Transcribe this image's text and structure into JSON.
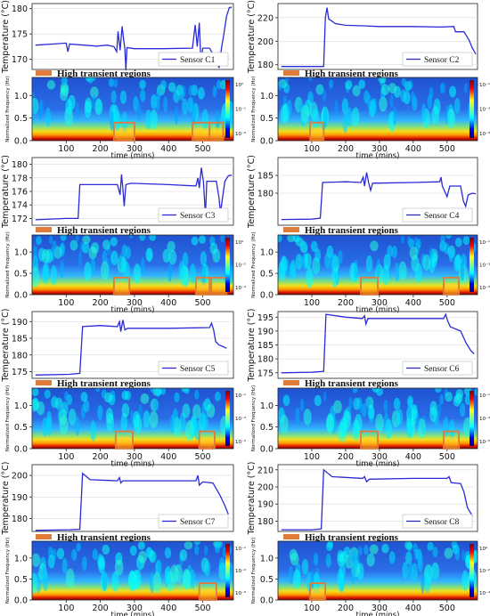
{
  "chart_data": [
    {
      "type": "line",
      "sensor": "C1",
      "ylabel": "Temperature (°C)",
      "legend": "Sensor C1",
      "yticks": [
        170,
        175,
        180
      ],
      "ylim": [
        168,
        181
      ],
      "xlim": [
        0,
        590
      ],
      "pts": [
        [
          10,
          172.8
        ],
        [
          60,
          173
        ],
        [
          100,
          173.2
        ],
        [
          105,
          171.5
        ],
        [
          110,
          173
        ],
        [
          190,
          172.6
        ],
        [
          220,
          172.8
        ],
        [
          240,
          172.5
        ],
        [
          248,
          171.5
        ],
        [
          252,
          175.5
        ],
        [
          258,
          171.8
        ],
        [
          264,
          176.5
        ],
        [
          268,
          174
        ],
        [
          272,
          172
        ],
        [
          275,
          167.8
        ],
        [
          278,
          172.3
        ],
        [
          300,
          172.1
        ],
        [
          380,
          172.1
        ],
        [
          470,
          172.2
        ],
        [
          478,
          176.8
        ],
        [
          484,
          172.5
        ],
        [
          490,
          177.2
        ],
        [
          495,
          169
        ],
        [
          500,
          172.2
        ],
        [
          520,
          172.2
        ],
        [
          540,
          169.8
        ],
        [
          548,
          168.3
        ],
        [
          555,
          172.2
        ],
        [
          562,
          175
        ],
        [
          570,
          178.5
        ],
        [
          578,
          180.2
        ],
        [
          585,
          180.3
        ]
      ]
    },
    {
      "type": "line",
      "sensor": "C2",
      "ylabel": "Temperature (°C)",
      "legend": "Sensor C2",
      "yticks": [
        180,
        200,
        220
      ],
      "ylim": [
        176,
        232
      ],
      "xlim": [
        0,
        590
      ],
      "pts": [
        [
          10,
          178.5
        ],
        [
          100,
          178.5
        ],
        [
          135,
          178.5
        ],
        [
          140,
          220
        ],
        [
          145,
          228.5
        ],
        [
          150,
          219
        ],
        [
          170,
          215
        ],
        [
          200,
          213.5
        ],
        [
          260,
          213
        ],
        [
          300,
          212.5
        ],
        [
          400,
          212.5
        ],
        [
          480,
          212
        ],
        [
          520,
          212.5
        ],
        [
          525,
          208
        ],
        [
          550,
          208
        ],
        [
          565,
          201
        ],
        [
          575,
          194
        ],
        [
          585,
          189
        ]
      ]
    },
    {
      "type": "line",
      "sensor": "C3",
      "ylabel": "Temperature (°C)",
      "legend": "Sensor C3",
      "yticks": [
        172,
        174,
        176,
        178,
        180
      ],
      "ylim": [
        171,
        181
      ],
      "xlim": [
        0,
        590
      ],
      "pts": [
        [
          10,
          171.8
        ],
        [
          100,
          172
        ],
        [
          135,
          172
        ],
        [
          140,
          177
        ],
        [
          180,
          177
        ],
        [
          250,
          177
        ],
        [
          258,
          175.5
        ],
        [
          262,
          178.5
        ],
        [
          266,
          176.5
        ],
        [
          270,
          173.8
        ],
        [
          275,
          177
        ],
        [
          290,
          177.2
        ],
        [
          400,
          177
        ],
        [
          480,
          176.8
        ],
        [
          486,
          178
        ],
        [
          490,
          176.5
        ],
        [
          496,
          179.5
        ],
        [
          502,
          177.5
        ],
        [
          508,
          172.5
        ],
        [
          512,
          177.5
        ],
        [
          540,
          177.5
        ],
        [
          548,
          175
        ],
        [
          552,
          172.8
        ],
        [
          558,
          175
        ],
        [
          565,
          177.5
        ],
        [
          575,
          178.3
        ],
        [
          585,
          178.4
        ]
      ]
    },
    {
      "type": "line",
      "sensor": "C4",
      "ylabel": "Temperature (°C)",
      "legend": "Sensor C4",
      "yticks": [
        180,
        185
      ],
      "ylim": [
        171,
        190
      ],
      "xlim": [
        0,
        590
      ],
      "pts": [
        [
          10,
          172.6
        ],
        [
          100,
          172.7
        ],
        [
          125,
          173
        ],
        [
          132,
          183
        ],
        [
          200,
          183.2
        ],
        [
          245,
          183
        ],
        [
          252,
          184.5
        ],
        [
          256,
          182
        ],
        [
          262,
          185.8
        ],
        [
          268,
          183
        ],
        [
          274,
          180.8
        ],
        [
          280,
          182.8
        ],
        [
          400,
          183
        ],
        [
          478,
          183.2
        ],
        [
          482,
          184.5
        ],
        [
          486,
          182
        ],
        [
          500,
          179
        ],
        [
          508,
          182
        ],
        [
          540,
          182
        ],
        [
          548,
          177.8
        ],
        [
          555,
          176.3
        ],
        [
          562,
          179.5
        ],
        [
          575,
          180
        ],
        [
          585,
          179.8
        ]
      ]
    },
    {
      "type": "line",
      "sensor": "C5",
      "ylabel": "Temperature (°C)",
      "legend": "Sensor C5",
      "yticks": [
        175,
        180,
        185,
        190
      ],
      "ylim": [
        173,
        193
      ],
      "xlim": [
        0,
        590
      ],
      "pts": [
        [
          10,
          174
        ],
        [
          110,
          174.2
        ],
        [
          140,
          174.5
        ],
        [
          148,
          188.5
        ],
        [
          200,
          188.8
        ],
        [
          250,
          188.5
        ],
        [
          256,
          190
        ],
        [
          260,
          187
        ],
        [
          266,
          190.5
        ],
        [
          272,
          187.5
        ],
        [
          280,
          188
        ],
        [
          400,
          188
        ],
        [
          520,
          188.2
        ],
        [
          526,
          189.5
        ],
        [
          532,
          187.5
        ],
        [
          538,
          184
        ],
        [
          548,
          183
        ],
        [
          560,
          182.5
        ],
        [
          570,
          182
        ]
      ]
    },
    {
      "type": "line",
      "sensor": "C6",
      "ylabel": "Temperature (°C)",
      "legend": "Sensor C6",
      "yticks": [
        175,
        180,
        185,
        190,
        195
      ],
      "ylim": [
        173,
        197
      ],
      "xlim": [
        0,
        590
      ],
      "pts": [
        [
          10,
          175
        ],
        [
          100,
          175.2
        ],
        [
          135,
          175.5
        ],
        [
          142,
          196
        ],
        [
          200,
          195
        ],
        [
          250,
          194.5
        ],
        [
          256,
          195.5
        ],
        [
          260,
          192.5
        ],
        [
          266,
          194.5
        ],
        [
          300,
          194.5
        ],
        [
          400,
          194.5
        ],
        [
          490,
          194.5
        ],
        [
          496,
          196
        ],
        [
          502,
          193.5
        ],
        [
          510,
          191.5
        ],
        [
          540,
          190
        ],
        [
          555,
          186
        ],
        [
          570,
          183
        ],
        [
          580,
          181.8
        ]
      ]
    },
    {
      "type": "line",
      "sensor": "C7",
      "ylabel": "Temperature (°C)",
      "legend": "Sensor C7",
      "yticks": [
        180,
        190,
        200
      ],
      "ylim": [
        174,
        205
      ],
      "xlim": [
        0,
        590
      ],
      "pts": [
        [
          10,
          174.5
        ],
        [
          110,
          174.8
        ],
        [
          140,
          175
        ],
        [
          148,
          201
        ],
        [
          170,
          198
        ],
        [
          250,
          197.5
        ],
        [
          256,
          199
        ],
        [
          260,
          196.5
        ],
        [
          266,
          197.5
        ],
        [
          400,
          197.5
        ],
        [
          480,
          197.5
        ],
        [
          486,
          200
        ],
        [
          490,
          195.5
        ],
        [
          500,
          197
        ],
        [
          530,
          196.5
        ],
        [
          550,
          191
        ],
        [
          565,
          186
        ],
        [
          575,
          182
        ]
      ]
    },
    {
      "type": "line",
      "sensor": "C8",
      "ylabel": "Temperature (°C)",
      "legend": "Sensor C8",
      "yticks": [
        180,
        190,
        200,
        210
      ],
      "ylim": [
        174,
        213
      ],
      "xlim": [
        0,
        590
      ],
      "pts": [
        [
          10,
          175
        ],
        [
          100,
          175
        ],
        [
          128,
          175.5
        ],
        [
          135,
          210
        ],
        [
          160,
          206
        ],
        [
          250,
          205
        ],
        [
          256,
          206
        ],
        [
          262,
          203
        ],
        [
          270,
          204.5
        ],
        [
          400,
          205
        ],
        [
          500,
          205
        ],
        [
          506,
          206
        ],
        [
          512,
          202.5
        ],
        [
          540,
          202
        ],
        [
          550,
          197
        ],
        [
          560,
          188
        ],
        [
          575,
          183
        ]
      ]
    },
    {
      "type": "heatmap",
      "sensor": "C1",
      "ylabel": "Normalized Frequency (Hz)",
      "xlabel": "time (mins)",
      "yticks": [
        0.0,
        0.5,
        1.0
      ],
      "xticks": [
        100,
        200,
        300,
        400,
        500
      ],
      "ylim": [
        0,
        1.4
      ],
      "xlim": [
        0,
        590
      ],
      "colorbar": [
        "10²",
        "10⁻¹",
        "10⁻⁵"
      ],
      "boxes": [
        [
          240,
          300
        ],
        [
          470,
          520
        ],
        [
          520,
          560
        ]
      ]
    },
    {
      "type": "heatmap",
      "sensor": "C2",
      "ylabel": "Normalized Frequency (Hz)",
      "xlabel": "time (mins)",
      "yticks": [
        0.0,
        0.5,
        1.0
      ],
      "xticks": [
        100,
        200,
        300,
        400,
        500
      ],
      "ylim": [
        0,
        1.4
      ],
      "xlim": [
        0,
        590
      ],
      "colorbar": [
        "10⁻¹",
        "10⁻³",
        "10⁻⁵"
      ],
      "boxes": [
        [
          95,
          135
        ]
      ]
    },
    {
      "type": "heatmap",
      "sensor": "C3",
      "ylabel": "Normalized Frequency (Hz)",
      "xlabel": "time (mins)",
      "yticks": [
        0.0,
        0.5,
        1.0
      ],
      "xticks": [
        100,
        200,
        300,
        400,
        500
      ],
      "ylim": [
        0,
        1.4
      ],
      "xlim": [
        0,
        590
      ],
      "colorbar": [
        "10⁰",
        "10⁻²",
        "10⁻⁴"
      ],
      "boxes": [
        [
          240,
          285
        ],
        [
          480,
          520
        ],
        [
          525,
          570
        ]
      ]
    },
    {
      "type": "heatmap",
      "sensor": "C4",
      "ylabel": "Normalized Frequency (Hz)",
      "xlabel": "time (mins)",
      "yticks": [
        0.0,
        0.5,
        1.0
      ],
      "xticks": [
        100,
        200,
        300,
        400,
        500
      ],
      "ylim": [
        0,
        1.4
      ],
      "xlim": [
        0,
        590
      ],
      "colorbar": [
        "10⁻¹",
        "10⁻³",
        "10⁻⁵"
      ],
      "boxes": [
        [
          245,
          295
        ],
        [
          490,
          535
        ]
      ]
    },
    {
      "type": "heatmap",
      "sensor": "C5",
      "ylabel": "Normalized Frequency (Hz)",
      "xlabel": "time (mins)",
      "yticks": [
        0.0,
        0.5,
        1.0
      ],
      "xticks": [
        100,
        200,
        300,
        400,
        500
      ],
      "ylim": [
        0,
        1.4
      ],
      "xlim": [
        0,
        590
      ],
      "colorbar": [
        "10⁻¹",
        "10⁻³",
        "10⁻⁵"
      ],
      "boxes": [
        [
          245,
          295
        ],
        [
          490,
          535
        ]
      ]
    },
    {
      "type": "heatmap",
      "sensor": "C6",
      "ylabel": "Normalized Frequency (Hz)",
      "xlabel": "time (mins)",
      "yticks": [
        0.0,
        0.5,
        1.0
      ],
      "xticks": [
        100,
        200,
        300,
        400,
        500
      ],
      "ylim": [
        0,
        1.4
      ],
      "xlim": [
        0,
        590
      ],
      "colorbar": [
        "10⁻¹",
        "10⁻³",
        "10⁻⁵"
      ],
      "boxes": [
        [
          245,
          295
        ],
        [
          490,
          535
        ]
      ]
    },
    {
      "type": "heatmap",
      "sensor": "C7",
      "ylabel": "Normalized Frequency (Hz)",
      "xlabel": "time (mins)",
      "yticks": [
        0.0,
        0.5,
        1.0
      ],
      "xticks": [
        100,
        200,
        300,
        400,
        500
      ],
      "ylim": [
        0,
        1.4
      ],
      "xlim": [
        0,
        590
      ],
      "colorbar": [
        "10⁻¹",
        "10⁻³",
        "10⁻⁵"
      ],
      "boxes": [
        [
          490,
          540
        ]
      ]
    },
    {
      "type": "heatmap",
      "sensor": "C8",
      "ylabel": "Normalized Frequency (Hz)",
      "xlabel": "time (mins)",
      "yticks": [
        0.0,
        0.5,
        1.0
      ],
      "xticks": [
        100,
        200,
        300,
        400,
        500
      ],
      "ylim": [
        0,
        1.4
      ],
      "xlim": [
        0,
        590
      ],
      "colorbar": [
        "10⁰",
        "10⁻²",
        "10⁻⁴"
      ],
      "boxes": [
        [
          95,
          140
        ]
      ]
    }
  ],
  "legend_label": "High transient regions",
  "colors": {
    "line": "#2a2ad8",
    "box": "#e07b39",
    "axis": "#222222",
    "grid": "#d8d8d8"
  }
}
